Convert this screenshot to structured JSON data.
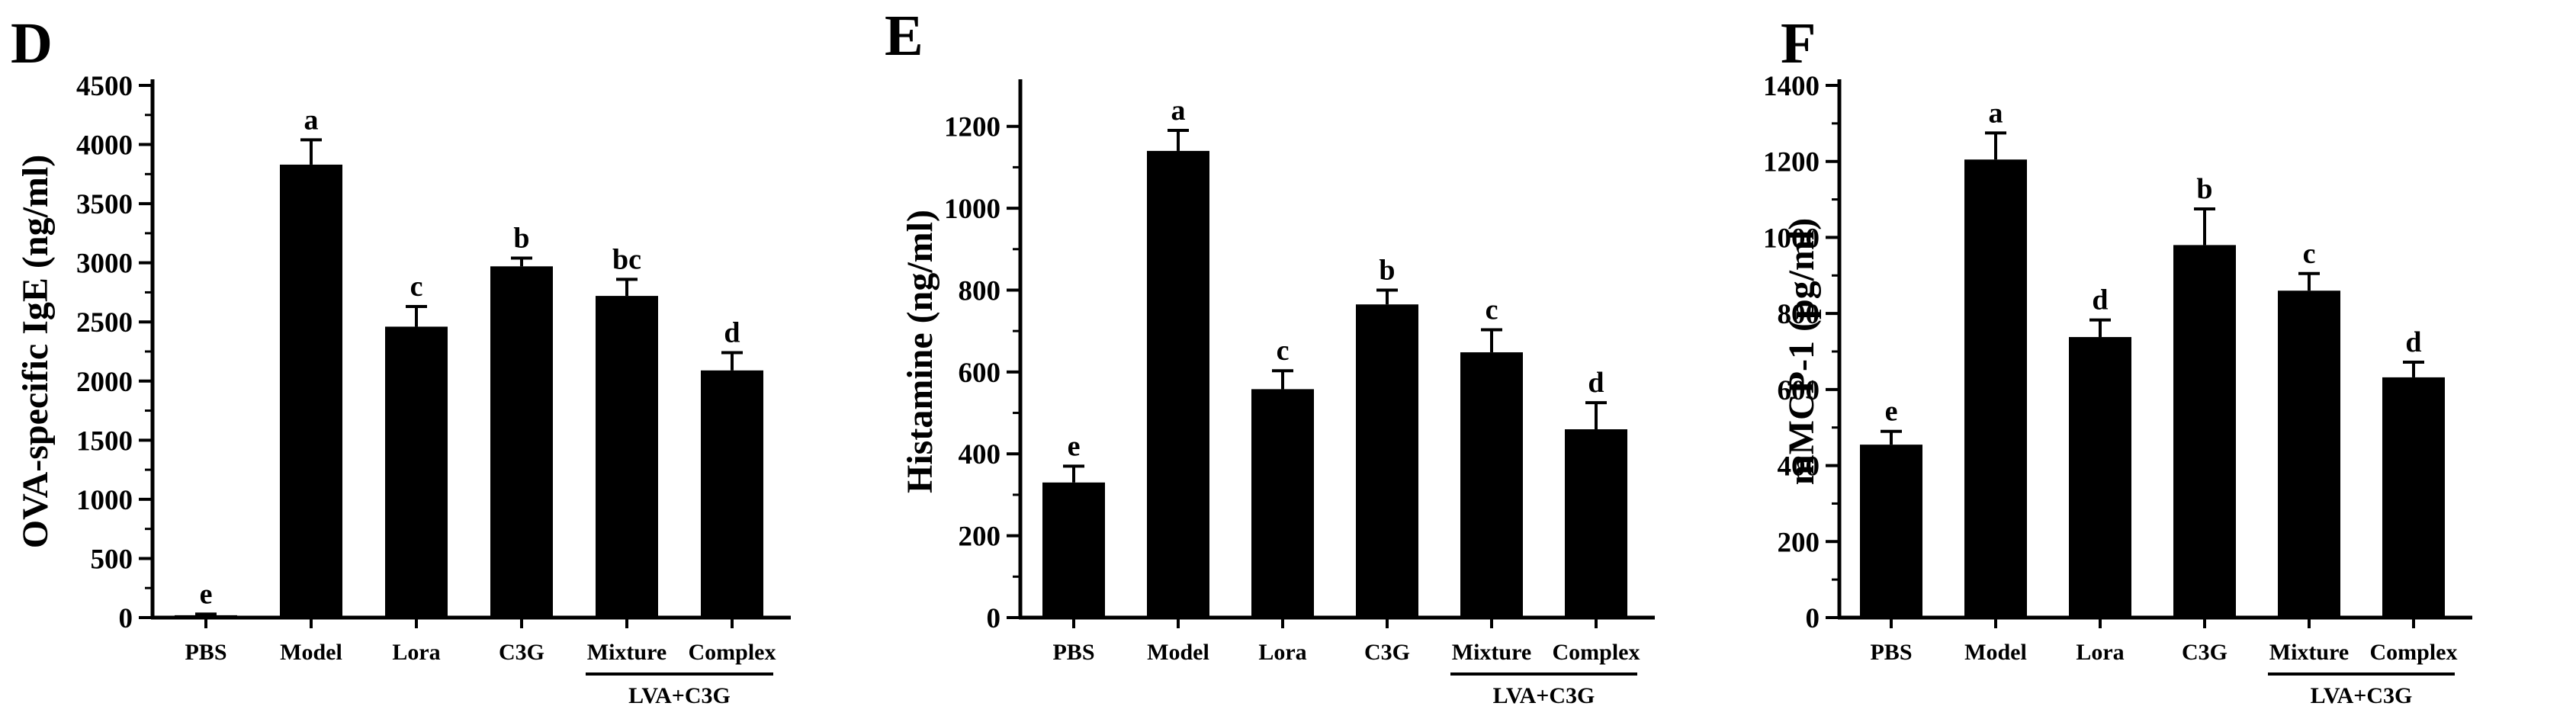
{
  "chart_data": [
    {
      "type": "bar",
      "panel": "D",
      "ylabel": "OVA-specific IgE (ng/ml)",
      "categories": [
        "PBS",
        "Model",
        "Lora",
        "C3G",
        "Mixture",
        "Complex"
      ],
      "values": [
        20,
        3830,
        2460,
        2970,
        2720,
        2090
      ],
      "errors": [
        10,
        210,
        170,
        70,
        140,
        150
      ],
      "significance": [
        "e",
        "a",
        "c",
        "b",
        "bc",
        "d"
      ],
      "group_label": "LVA+C3G",
      "ylim": [
        0,
        4500
      ],
      "yticks": [
        0,
        500,
        1000,
        1500,
        2000,
        2500,
        3000,
        3500,
        4000,
        4500
      ],
      "color": "#000000"
    },
    {
      "type": "bar",
      "panel": "E",
      "ylabel": "Histamine (ng/ml)",
      "categories": [
        "PBS",
        "Model",
        "Lora",
        "C3G",
        "Mixture",
        "Complex"
      ],
      "values": [
        330,
        1140,
        558,
        765,
        648,
        460
      ],
      "errors": [
        40,
        50,
        45,
        35,
        55,
        65
      ],
      "significance": [
        "e",
        "a",
        "c",
        "b",
        "c",
        "d"
      ],
      "group_label": "LVA+C3G",
      "ylim": [
        0,
        1300
      ],
      "yticks": [
        0,
        200,
        400,
        600,
        800,
        1000,
        1200
      ],
      "color": "#000000"
    },
    {
      "type": "bar",
      "panel": "F",
      "ylabel": "mMCP-1 (pg/ml)",
      "categories": [
        "PBS",
        "Model",
        "Lora",
        "C3G",
        "Mixture",
        "Complex"
      ],
      "values": [
        455,
        1205,
        738,
        980,
        860,
        632
      ],
      "errors": [
        35,
        70,
        45,
        95,
        45,
        40
      ],
      "significance": [
        "e",
        "a",
        "d",
        "b",
        "c",
        "d"
      ],
      "group_label": "LVA+C3G",
      "ylim": [
        0,
        1400
      ],
      "yticks": [
        0,
        200,
        400,
        600,
        800,
        1000,
        1200,
        1400
      ],
      "color": "#000000"
    }
  ]
}
